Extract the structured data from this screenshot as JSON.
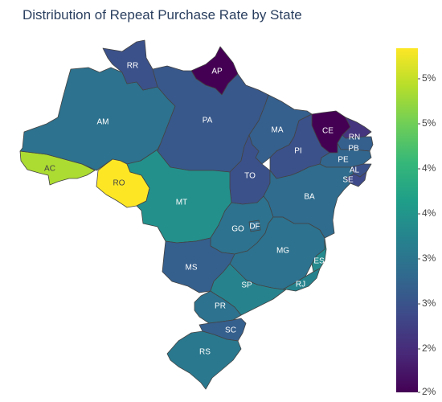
{
  "title": "Distribution of Repeat Purchase Rate by State",
  "colors": {
    "viridis": [
      "#440154",
      "#482878",
      "#3e4989",
      "#31688e",
      "#26828e",
      "#1f9e89",
      "#35b779",
      "#6ece58",
      "#b5de2b",
      "#fde725"
    ]
  },
  "chart_data": {
    "type": "choropleth",
    "title": "Distribution of Repeat Purchase Rate by State",
    "colorbar": {
      "colorscale": "Viridis",
      "range": [
        2,
        6
      ],
      "ticks": [
        "5%",
        "5%",
        "4%",
        "4%",
        "3%",
        "3%",
        "2%",
        "2%"
      ]
    },
    "states": [
      {
        "code": "AC",
        "value": 5.5
      },
      {
        "code": "AM",
        "value": 3.5
      },
      {
        "code": "RR",
        "value": 3.0
      },
      {
        "code": "AP",
        "value": 2.0
      },
      {
        "code": "PA",
        "value": 3.1
      },
      {
        "code": "MA",
        "value": 3.2
      },
      {
        "code": "CE",
        "value": 2.0
      },
      {
        "code": "RN",
        "value": 2.6
      },
      {
        "code": "PB",
        "value": 3.2
      },
      {
        "code": "PE",
        "value": 3.3
      },
      {
        "code": "AL",
        "value": 3.0
      },
      {
        "code": "SE",
        "value": 2.9
      },
      {
        "code": "PI",
        "value": 3.0
      },
      {
        "code": "TO",
        "value": 3.0
      },
      {
        "code": "BA",
        "value": 3.4
      },
      {
        "code": "RO",
        "value": 6.0
      },
      {
        "code": "MT",
        "value": 4.0
      },
      {
        "code": "GO",
        "value": 3.5
      },
      {
        "code": "DF",
        "value": 3.4
      },
      {
        "code": "MG",
        "value": 3.5
      },
      {
        "code": "ES",
        "value": 3.9
      },
      {
        "code": "RJ",
        "value": 3.8
      },
      {
        "code": "MS",
        "value": 3.2
      },
      {
        "code": "SP",
        "value": 3.8
      },
      {
        "code": "PR",
        "value": 3.5
      },
      {
        "code": "SC",
        "value": 3.2
      },
      {
        "code": "RS",
        "value": 3.6
      }
    ]
  }
}
